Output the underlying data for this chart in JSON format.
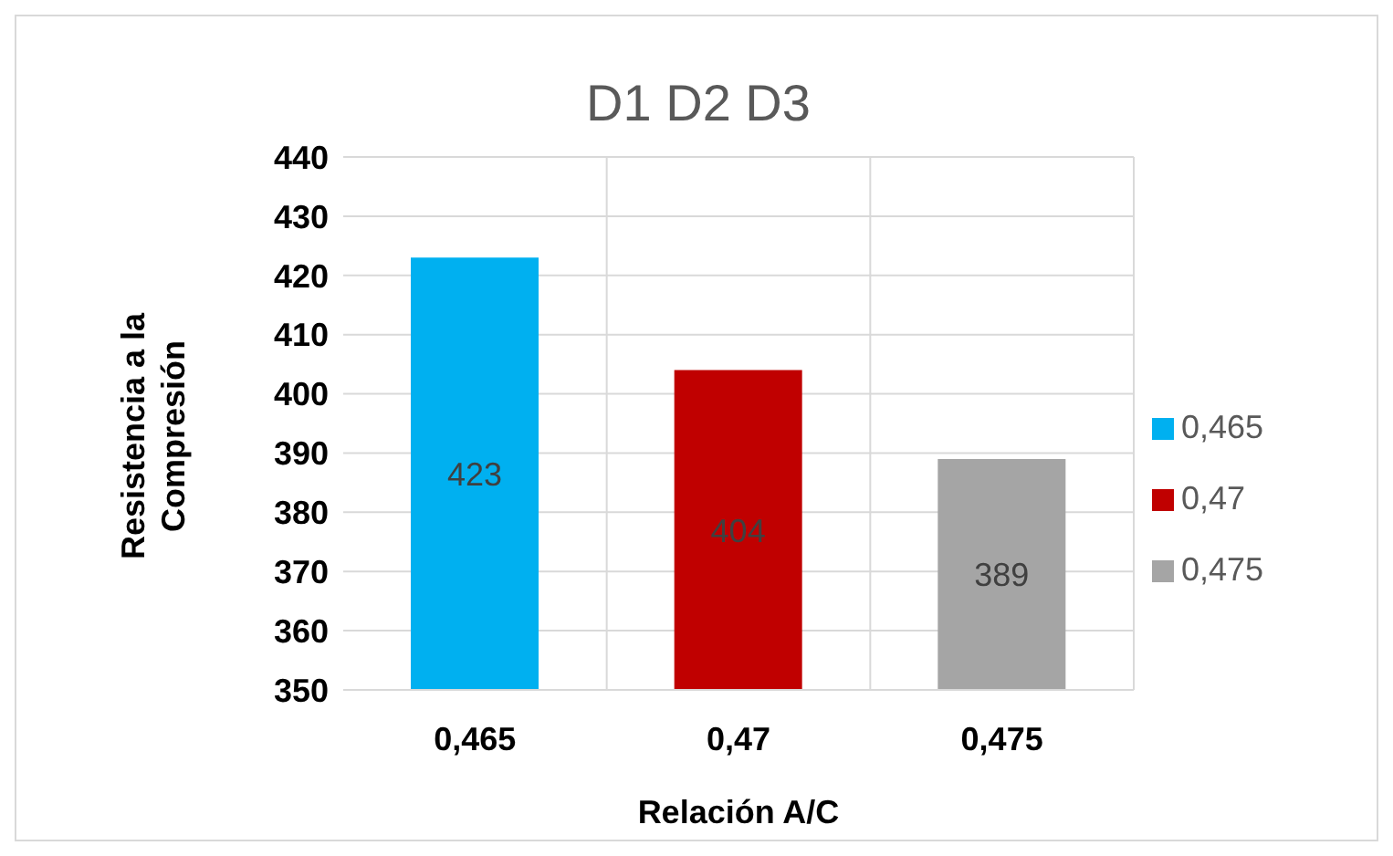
{
  "chart_data": {
    "type": "bar",
    "title": "D1 D2 D3",
    "xlabel": "Relación A/C",
    "ylabel": "Resistencia a la Compresión",
    "categories": [
      "0,465",
      "0,47",
      "0,475"
    ],
    "series": [
      {
        "name": "0,465",
        "color": "#00b0f0",
        "values": [
          423,
          null,
          null
        ]
      },
      {
        "name": "0,47",
        "color": "#c00000",
        "values": [
          null,
          404,
          null
        ]
      },
      {
        "name": "0,475",
        "color": "#a5a5a5",
        "values": [
          null,
          null,
          389
        ]
      }
    ],
    "ylim": [
      350,
      440
    ],
    "yticks": [
      350,
      360,
      370,
      380,
      390,
      400,
      410,
      420,
      430,
      440
    ],
    "grid": true,
    "legend": "right",
    "data_labels": true
  }
}
